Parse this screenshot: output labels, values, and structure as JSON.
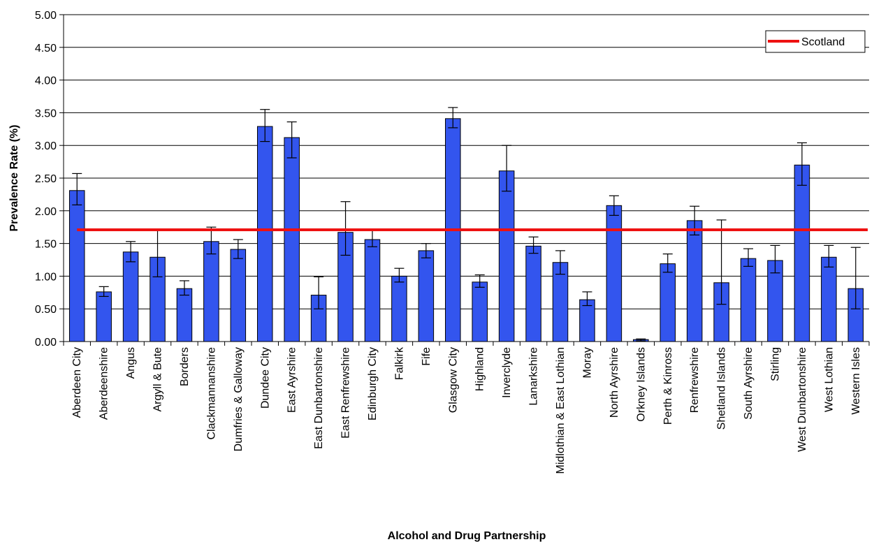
{
  "chart_data": {
    "type": "bar",
    "title": "",
    "xlabel": "Alcohol and Drug Partnership",
    "ylabel": "Prevalence Rate (%)",
    "ylim": [
      0,
      5
    ],
    "yticks": [
      "0.00",
      "0.50",
      "1.00",
      "1.50",
      "2.00",
      "2.50",
      "3.00",
      "3.50",
      "4.00",
      "4.50",
      "5.00"
    ],
    "grid": true,
    "legend_position": "top-right",
    "bar_color": "#3355ee",
    "reference_line": {
      "name": "Scotland",
      "value": 1.71,
      "color": "#ee1111"
    },
    "categories": [
      "Aberdeen City",
      "Aberdeenshire",
      "Angus",
      "Argyll & Bute",
      "Borders",
      "Clackmannanshire",
      "Dumfries & Galloway",
      "Dundee City",
      "East Ayrshire",
      "East Dunbartonshire",
      "East Renfrewshire",
      "Edinburgh City",
      "Falkirk",
      "Fife",
      "Glasgow City",
      "Highland",
      "Inverclyde",
      "Lanarkshire",
      "Midlothian & East Lothian",
      "Moray",
      "North Ayrshire",
      "Orkney Islands",
      "Perth & Kinross",
      "Renfrewshire",
      "Shetland Islands",
      "South Ayrshire",
      "Stirling",
      "West Dunbartonshire",
      "West Lothian",
      "Western Isles"
    ],
    "values": [
      2.31,
      0.76,
      1.37,
      1.29,
      0.81,
      1.53,
      1.41,
      3.29,
      3.12,
      0.71,
      1.67,
      1.56,
      1.0,
      1.39,
      3.41,
      0.91,
      2.61,
      1.46,
      1.21,
      0.64,
      2.08,
      0.03,
      1.19,
      1.85,
      0.9,
      1.27,
      1.24,
      2.7,
      1.29,
      0.81
    ],
    "error_low": [
      2.09,
      0.69,
      1.22,
      0.99,
      0.71,
      1.34,
      1.27,
      3.06,
      2.81,
      0.5,
      1.32,
      1.45,
      0.91,
      1.28,
      3.27,
      0.83,
      2.3,
      1.35,
      1.03,
      0.55,
      1.93,
      0.01,
      1.06,
      1.63,
      0.57,
      1.15,
      1.05,
      2.39,
      1.14,
      0.5
    ],
    "error_high": [
      2.57,
      0.84,
      1.53,
      1.71,
      0.93,
      1.75,
      1.56,
      3.55,
      3.36,
      0.99,
      2.14,
      1.7,
      1.12,
      1.5,
      3.58,
      1.02,
      3.0,
      1.6,
      1.39,
      0.76,
      2.23,
      0.04,
      1.34,
      2.07,
      1.86,
      1.42,
      1.47,
      3.04,
      1.47,
      1.44
    ]
  }
}
